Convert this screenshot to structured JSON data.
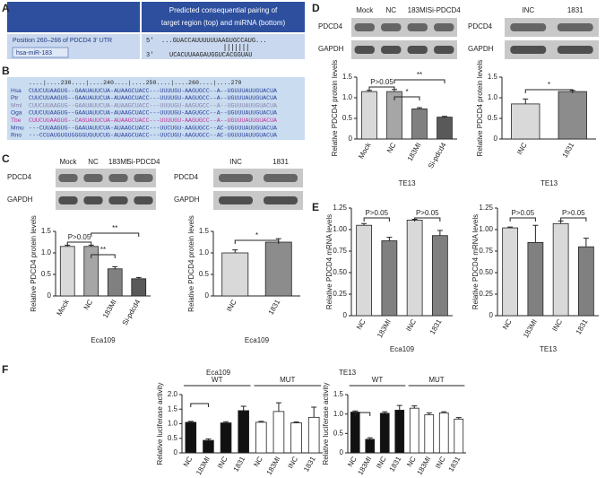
{
  "panel_labels": [
    "A",
    "B",
    "C",
    "D",
    "E",
    "F"
  ],
  "panel_a": {
    "header_lines": [
      "Predicted consequential pairing of",
      "target region (top) and miRNA (bottom)"
    ],
    "target": "Position 260–266 of PDCD4 3′ UTR",
    "mirna": "hsa-miR-183",
    "top_prefix": "5′",
    "top_seq": "...GUACCAUUUUUUAAGUGCCAUG...",
    "bottom_prefix": "3′",
    "bottom_seq": "UCACUUAAGAUGGUCACGGUAU"
  },
  "panel_b": {
    "ruler": "....|....230....|....240....|....250....|....260....|....270",
    "species": [
      "Hsa",
      "Ptr",
      "Mml",
      "Oga",
      "Tbe",
      "Mmu",
      "Rno"
    ],
    "sequences": [
      "CUUCUUAAGUG--GAAUAUUCUA-AUAAGCUACC---UUUUGU-AAGUGCC--A--UGUUUAUUGUACUA",
      "CUUCUUAAGUG--GAAUAUUCUA-AUAAGCUACC---UUUUGU-AAGUGCC--A--UGUUUAUUGUACUA",
      "CUUCUUAAGUG--GAAUAUUCUA-AUAAGCUACC---UUUUGU-AAGUGCC--A--UGUUUAUUGUACUA",
      "CUUCUUAAGUG--GAAUAUUCUA-AUAAGCUACC---UUUUGU-AAGUGCC--A--UGUUUAUUGUACUA",
      "CUUCUUAAGUG--CAGUAUUCUA-AUAAGCUACC---UUUUGU-AAGUGCC--A--UGUUUAUUGUACUA",
      "---CUUAAGUG--GAAUAUUCUA-AUAAGCUACC---UUCUGU-AAGUGCC--AC-UGUUUAUUGUACUA",
      "---CCUAUGUGUGGGGUGUUCUG-AUAAGCUACC---UUCUGU-AAGUGCC--AC-UGUUUAUUGUACUA"
    ],
    "colors": [
      "#2a3f9a",
      "#2a3f9a",
      "#8a7fa8",
      "#2a3f9a",
      "#c0359a",
      "#2a3f9a",
      "#2a3f9a"
    ]
  },
  "blots": [
    {
      "lanes": [
        "Mock",
        "NC",
        "183MI",
        "Si-PDCD4"
      ],
      "rows": [
        "PDCD4",
        "GAPDH"
      ]
    },
    {
      "lanes": [
        "INC",
        "1831"
      ],
      "rows": [
        "PDCD4",
        "GAPDH"
      ]
    },
    {
      "lanes": [
        "Mock",
        "NC",
        "183MI",
        "Si-PDCD4"
      ],
      "rows": [
        "PDCD4",
        "GAPDH"
      ]
    },
    {
      "lanes": [
        "INC",
        "1831"
      ],
      "rows": [
        "PDCD4",
        "GAPDH"
      ]
    }
  ],
  "chart_data": [
    {
      "type": "bar",
      "xlabel": "Eca109",
      "ylabel": "Relative PDCD4 protein levels",
      "categories": [
        "Mock",
        "NC",
        "183MI",
        "Si-pdcd4"
      ],
      "values": [
        1.15,
        1.15,
        0.63,
        0.4
      ],
      "errors": [
        0.03,
        0.03,
        0.05,
        0.03
      ],
      "colors": [
        "#d9d9d9",
        "#a6a6a6",
        "#808080",
        "#595959"
      ],
      "ylim": [
        0,
        1.5
      ],
      "yticks": [
        0,
        0.5,
        {
          "value": 1,
          "label": "1.0"
        },
        1.5
      ],
      "annotations": [
        "P>0.05",
        "**",
        "**"
      ]
    },
    {
      "type": "bar",
      "xlabel": "Eca109",
      "ylabel": "Relative PDCD4 protein levels",
      "categories": [
        "INC",
        "1831"
      ],
      "values": [
        1.0,
        1.25
      ],
      "errors": [
        0.07,
        0.08
      ],
      "colors": [
        "#d9d9d9",
        "#8c8c8c"
      ],
      "ylim": [
        0,
        1.5
      ],
      "yticks": [
        0,
        0.5,
        {
          "value": 1,
          "label": "1.0"
        },
        1.5
      ],
      "annotations": [
        "*"
      ]
    },
    {
      "type": "bar",
      "xlabel": "TE13",
      "ylabel": "Relative PDCD4 protein levels",
      "categories": [
        "Mock",
        "NC",
        "183MI",
        "Si-pdcd4"
      ],
      "values": [
        1.15,
        1.15,
        0.73,
        0.53
      ],
      "errors": [
        0.03,
        0.05,
        0.03,
        0.02
      ],
      "colors": [
        "#d9d9d9",
        "#a6a6a6",
        "#808080",
        "#595959"
      ],
      "ylim": [
        0,
        1.5
      ],
      "yticks": [
        0,
        0.5,
        {
          "value": 1,
          "label": "1.0"
        },
        1.5
      ],
      "annotations": [
        "P>0.05",
        "*",
        "**"
      ]
    },
    {
      "type": "bar",
      "xlabel": "TE13",
      "ylabel": "Relative PDCD4 protein levels",
      "categories": [
        "INC",
        "1831"
      ],
      "values": [
        0.85,
        1.15
      ],
      "errors": [
        0.12,
        0.03
      ],
      "colors": [
        "#d9d9d9",
        "#8c8c8c"
      ],
      "ylim": [
        0,
        1.5
      ],
      "yticks": [
        0,
        0.5,
        {
          "value": 1,
          "label": "1.0"
        },
        1.5
      ],
      "annotations": [
        "*"
      ]
    },
    {
      "type": "bar",
      "xlabel": "Eca109",
      "ylabel": "Relative PDCD4 mRNA levels",
      "categories": [
        "NC",
        "183MI",
        "INC",
        "1831"
      ],
      "values": [
        1.05,
        0.87,
        1.11,
        0.93
      ],
      "errors": [
        0.02,
        0.04,
        0.01,
        0.06
      ],
      "colors": [
        "#d9d9d9",
        "#808080",
        "#d9d9d9",
        "#808080"
      ],
      "ylim": [
        0,
        1.25
      ],
      "yticks": [
        0,
        0.25,
        {
          "value": 0.5,
          "label": "0.50"
        },
        0.75,
        {
          "value": 1,
          "label": "1.00"
        },
        1.25
      ],
      "annotations": [
        "P>0.05",
        "P>0.05"
      ]
    },
    {
      "type": "bar",
      "xlabel": "TE13",
      "ylabel": "Relative PDCD4 mRNA levels",
      "categories": [
        "NC",
        "183MI",
        "INC",
        "1831"
      ],
      "values": [
        1.02,
        0.85,
        1.07,
        0.8
      ],
      "errors": [
        0.01,
        0.2,
        0.03,
        0.1
      ],
      "colors": [
        "#d9d9d9",
        "#808080",
        "#d9d9d9",
        "#808080"
      ],
      "ylim": [
        0,
        1.25
      ],
      "yticks": [
        0,
        0.25,
        {
          "value": 0.5,
          "label": "0.50"
        },
        0.75,
        {
          "value": 1,
          "label": "1.00"
        },
        1.25
      ],
      "annotations": [
        "P>0.05",
        "P>0.05"
      ]
    },
    {
      "type": "bar",
      "title": "Eca109",
      "ylabel": "Relative luciferase activity",
      "groups": [
        "WT",
        "MUT"
      ],
      "categories": [
        "NC",
        "183MI",
        "INC",
        "1831",
        "NC",
        "183MI",
        "INC",
        "1831"
      ],
      "values": [
        1.05,
        0.43,
        1.03,
        1.45,
        1.05,
        1.42,
        1.03,
        1.22
      ],
      "errors": [
        0.03,
        0.05,
        0.04,
        0.15,
        0.03,
        0.3,
        0.03,
        0.35
      ],
      "colors": [
        "#111111",
        "#111111",
        "#111111",
        "#111111",
        "#ffffff",
        "#ffffff",
        "#ffffff",
        "#ffffff"
      ],
      "ylim": [
        0,
        2
      ],
      "yticks": [
        0,
        0.5,
        {
          "value": 1,
          "label": "1.0"
        },
        1.5,
        {
          "value": 2,
          "label": "2.0"
        }
      ]
    },
    {
      "type": "bar",
      "title": "TE13",
      "ylabel": "Relative luciferase activity",
      "groups": [
        "WT",
        "MUT"
      ],
      "categories": [
        "NC",
        "183MI",
        "INC",
        "1831",
        "NC",
        "183MI",
        "INC",
        "1831"
      ],
      "values": [
        1.05,
        0.35,
        1.02,
        1.1,
        1.15,
        0.98,
        1.03,
        0.87
      ],
      "errors": [
        0.03,
        0.04,
        0.04,
        0.12,
        0.06,
        0.05,
        0.03,
        0.04
      ],
      "colors": [
        "#111111",
        "#111111",
        "#111111",
        "#111111",
        "#ffffff",
        "#ffffff",
        "#ffffff",
        "#ffffff"
      ],
      "ylim": [
        0,
        1.5
      ],
      "yticks": [
        0,
        0.5,
        {
          "value": 1,
          "label": "1.0"
        },
        1.5
      ]
    }
  ]
}
